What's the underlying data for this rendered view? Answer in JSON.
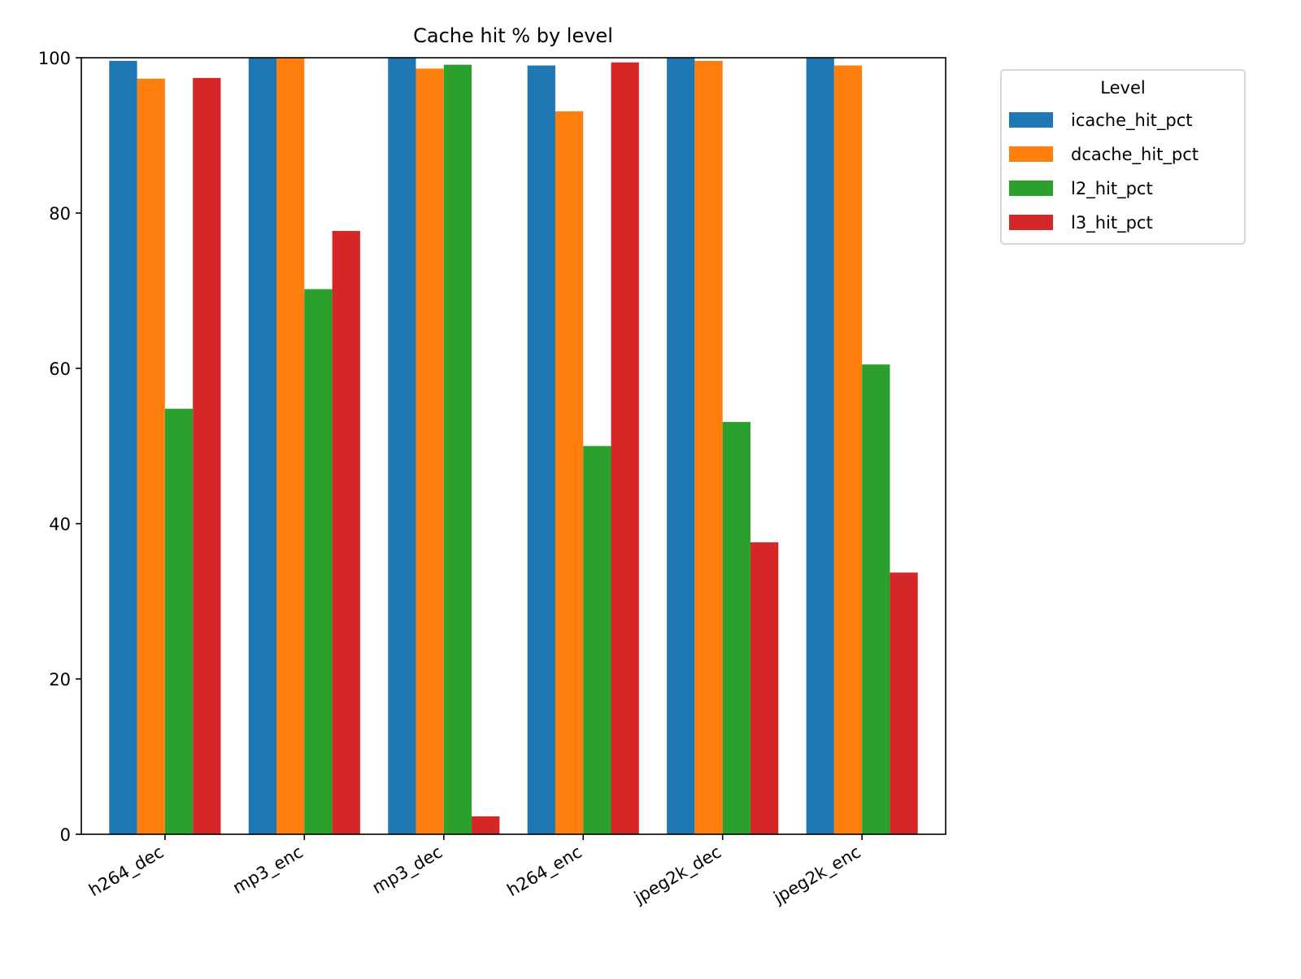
{
  "chart_data": {
    "type": "bar",
    "title": "Cache hit % by level",
    "xlabel": "",
    "ylabel": "",
    "ylim": [
      0,
      100
    ],
    "yticks": [
      0,
      20,
      40,
      60,
      80,
      100
    ],
    "grid": false,
    "categories": [
      "h264_dec",
      "mp3_enc",
      "mp3_dec",
      "h264_enc",
      "jpeg2k_dec",
      "jpeg2k_enc"
    ],
    "legend": {
      "title": "Level",
      "placement": "outside-top-right"
    },
    "series": [
      {
        "name": "icache_hit_pct",
        "color": "#1f77b4",
        "values": [
          99.6,
          100.0,
          100.0,
          99.0,
          100.0,
          100.0
        ]
      },
      {
        "name": "dcache_hit_pct",
        "color": "#ff7f0e",
        "values": [
          97.3,
          100.0,
          98.6,
          93.1,
          99.6,
          99.0
        ]
      },
      {
        "name": "l2_hit_pct",
        "color": "#2ca02c",
        "values": [
          54.8,
          70.2,
          99.1,
          50.0,
          53.1,
          60.5
        ]
      },
      {
        "name": "l3_hit_pct",
        "color": "#d62728",
        "values": [
          97.4,
          77.7,
          2.3,
          99.4,
          37.6,
          33.7
        ]
      }
    ]
  }
}
